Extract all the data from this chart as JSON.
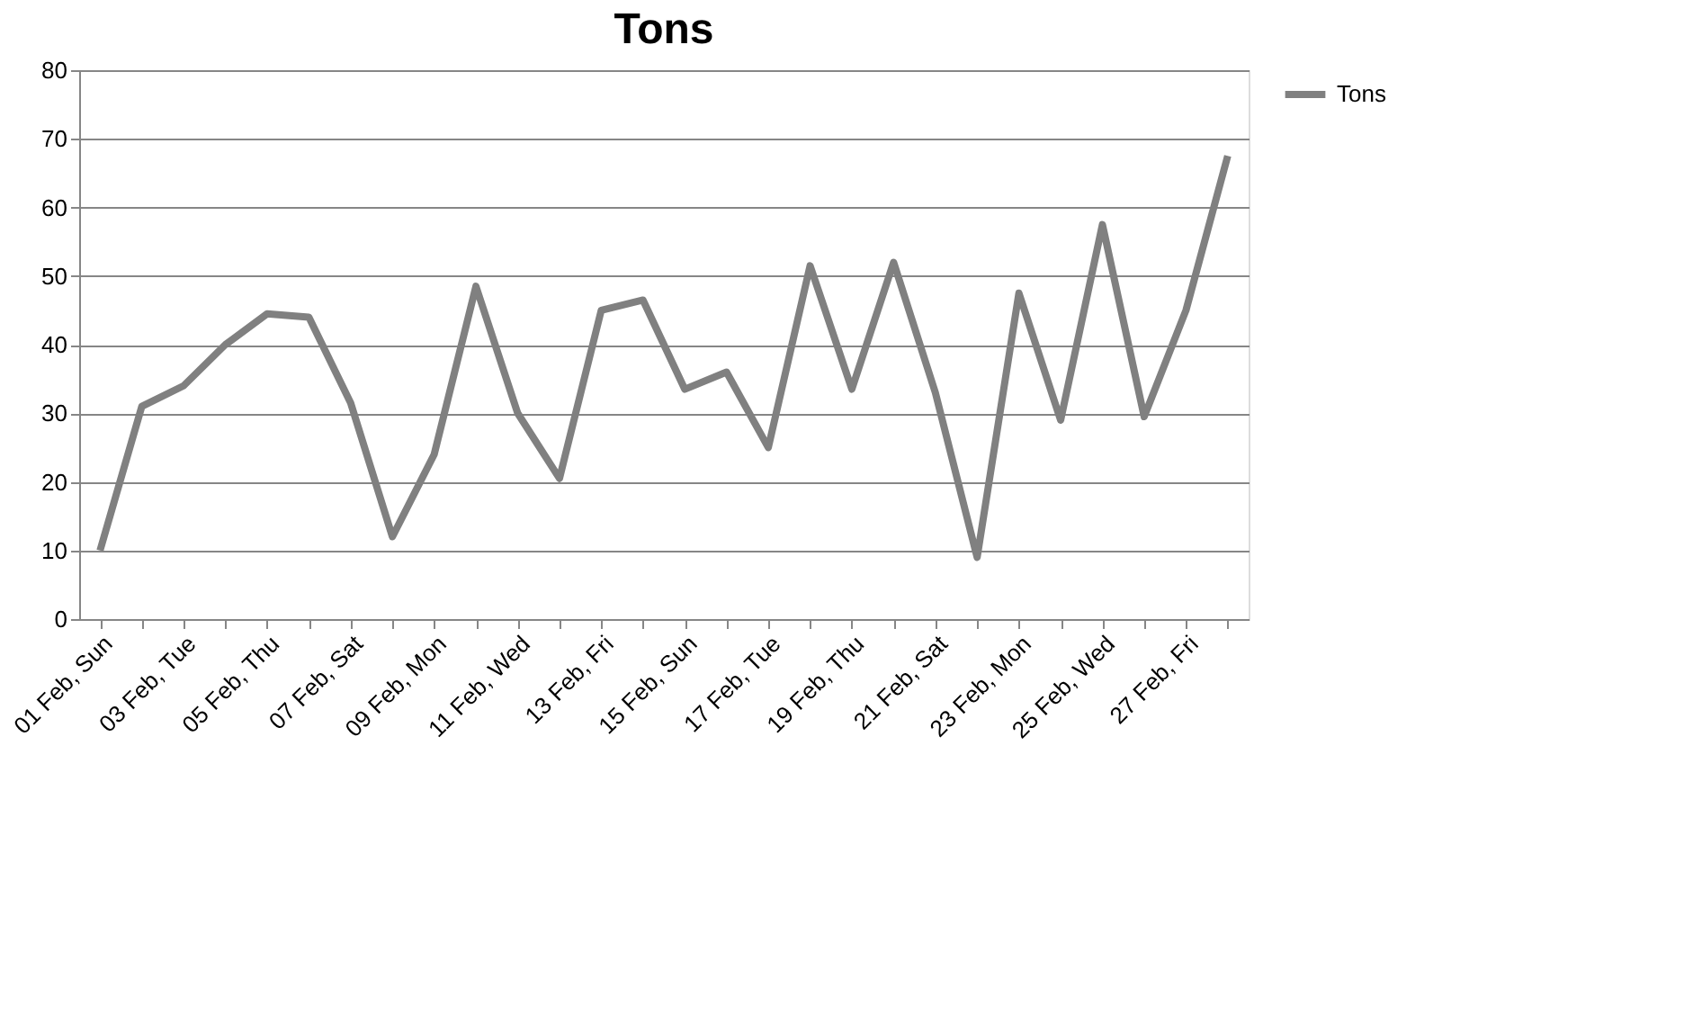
{
  "chart_data": {
    "type": "line",
    "title": "Tons",
    "categories": [
      "01 Feb, Sun",
      null,
      "03 Feb, Tue",
      null,
      "05 Feb, Thu",
      null,
      "07 Feb, Sat",
      null,
      "09 Feb, Mon",
      null,
      "11 Feb, Wed",
      null,
      "13 Feb, Fri",
      null,
      "15 Feb, Sun",
      null,
      "17 Feb, Tue",
      null,
      "19 Feb, Thu",
      null,
      "21 Feb, Sat",
      null,
      "23 Feb, Mon",
      null,
      "25 Feb, Wed",
      null,
      "27 Feb, Fri",
      null
    ],
    "series": [
      {
        "name": "Tons",
        "color": "#808080",
        "values": [
          10,
          31,
          34,
          40,
          44.5,
          44,
          31.5,
          12,
          24,
          48.5,
          30,
          20.5,
          45,
          46.5,
          33.5,
          36,
          25,
          51.5,
          33.5,
          52,
          33,
          9,
          47.5,
          29,
          57.5,
          29.5,
          45,
          67.5
        ]
      }
    ],
    "ylim": [
      0,
      80
    ],
    "yticks": [
      0,
      10,
      20,
      30,
      40,
      50,
      60,
      70,
      80
    ],
    "grid": "y",
    "legend": "right",
    "marker": "none",
    "line_style": "solid"
  }
}
